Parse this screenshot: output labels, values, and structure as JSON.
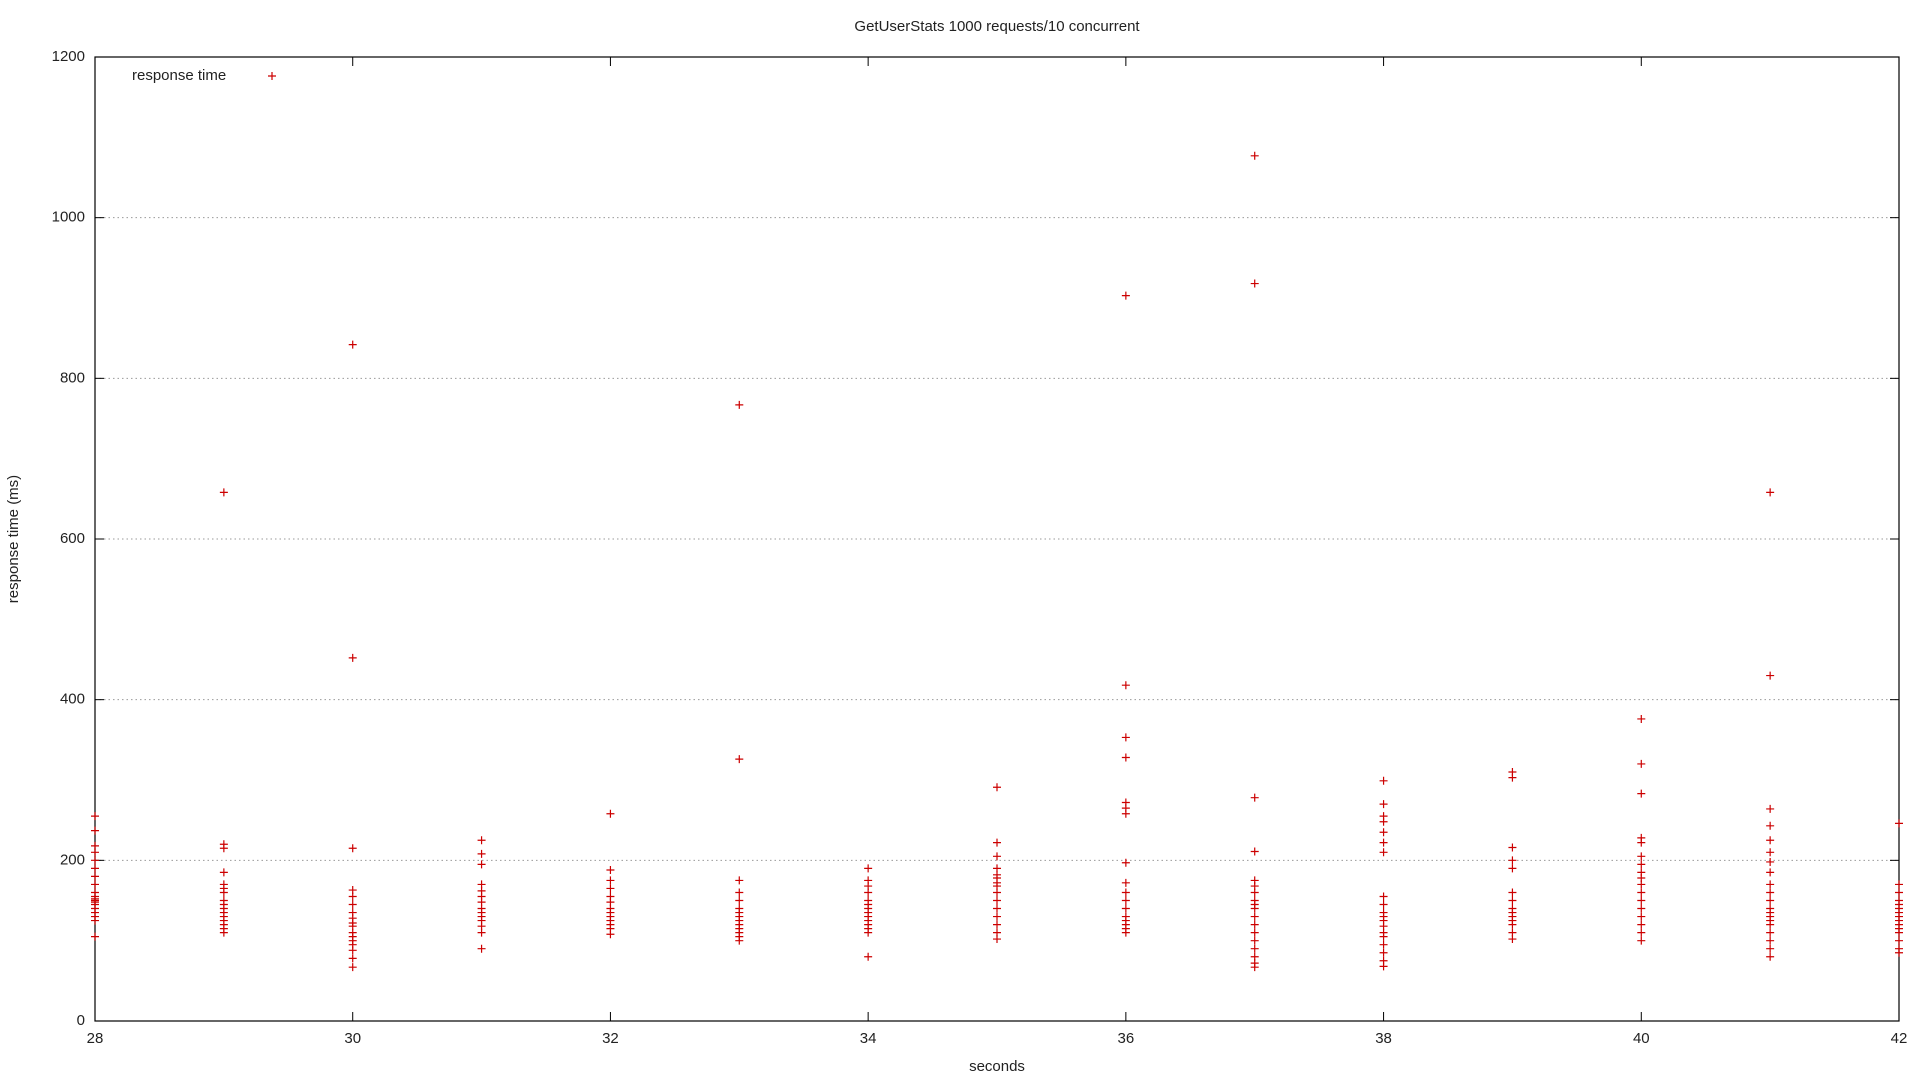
{
  "chart_data": {
    "type": "scatter",
    "title": "GetUserStats 1000 requests/10 concurrent",
    "x_label": "seconds",
    "y_label": "response time (ms)",
    "xlim": [
      28,
      42
    ],
    "xticks": [
      28,
      30,
      32,
      34,
      36,
      38,
      40,
      42
    ],
    "ylim": [
      0,
      1200
    ],
    "yticks": [
      0,
      200,
      400,
      600,
      800,
      1000,
      1200
    ],
    "grid": "y",
    "legend": "top-left",
    "marker": "+",
    "x": [
      28,
      28,
      28,
      28,
      28,
      28,
      28,
      28,
      28,
      28,
      28,
      28,
      28,
      28,
      28,
      28,
      28,
      28,
      28,
      29,
      29,
      29,
      29,
      29,
      29,
      29,
      29,
      29,
      29,
      29,
      29,
      29,
      29,
      29,
      29,
      30,
      30,
      30,
      30,
      30,
      30,
      30,
      30,
      30,
      30,
      30,
      30,
      30,
      30,
      30,
      30,
      30,
      31,
      31,
      31,
      31,
      31,
      31,
      31,
      31,
      31,
      31,
      31,
      31,
      31,
      31,
      32,
      32,
      32,
      32,
      32,
      32,
      32,
      32,
      32,
      32,
      32,
      32,
      32,
      33,
      33,
      33,
      33,
      33,
      33,
      33,
      33,
      33,
      33,
      33,
      33,
      33,
      33,
      34,
      34,
      34,
      34,
      34,
      34,
      34,
      34,
      34,
      34,
      34,
      34,
      34,
      34,
      35,
      35,
      35,
      35,
      35,
      35,
      35,
      35,
      35,
      35,
      35,
      35,
      35,
      35,
      35,
      36,
      36,
      36,
      36,
      36,
      36,
      36,
      36,
      36,
      36,
      36,
      36,
      36,
      36,
      36,
      36,
      36,
      37,
      37,
      37,
      37,
      37,
      37,
      37,
      37,
      37,
      37,
      37,
      37,
      37,
      37,
      37,
      37,
      37,
      37,
      38,
      38,
      38,
      38,
      38,
      38,
      38,
      38,
      38,
      38,
      38,
      38,
      38,
      38,
      38,
      38,
      38,
      38,
      38,
      39,
      39,
      39,
      39,
      39,
      39,
      39,
      39,
      39,
      39,
      39,
      39,
      39,
      39,
      40,
      40,
      40,
      40,
      40,
      40,
      40,
      40,
      40,
      40,
      40,
      40,
      40,
      40,
      40,
      40,
      40,
      41,
      41,
      41,
      41,
      41,
      41,
      41,
      41,
      41,
      41,
      41,
      41,
      41,
      41,
      41,
      41,
      41,
      41,
      41,
      41,
      42,
      42,
      42,
      42,
      42,
      42,
      42,
      42,
      42,
      42,
      42,
      42,
      42,
      42,
      42
    ],
    "series": [
      {
        "name": "response time",
        "color": "#cc0000",
        "values": [
          255,
          237,
          218,
          210,
          200,
          190,
          180,
          170,
          160,
          155,
          152,
          150,
          148,
          145,
          140,
          135,
          130,
          125,
          105,
          658,
          220,
          215,
          185,
          170,
          165,
          160,
          150,
          145,
          140,
          135,
          130,
          125,
          120,
          115,
          110,
          842,
          452,
          215,
          163,
          155,
          145,
          135,
          128,
          122,
          118,
          110,
          105,
          100,
          95,
          88,
          78,
          67,
          225,
          208,
          195,
          170,
          162,
          155,
          148,
          140,
          135,
          130,
          125,
          118,
          110,
          90,
          258,
          188,
          175,
          165,
          155,
          148,
          140,
          135,
          130,
          125,
          120,
          115,
          108,
          767,
          326,
          175,
          160,
          150,
          140,
          135,
          130,
          125,
          120,
          115,
          110,
          105,
          100,
          190,
          175,
          168,
          160,
          150,
          145,
          140,
          135,
          130,
          125,
          120,
          115,
          110,
          80,
          291,
          222,
          205,
          190,
          182,
          178,
          172,
          168,
          160,
          150,
          140,
          130,
          120,
          110,
          102,
          903,
          418,
          353,
          328,
          272,
          265,
          258,
          197,
          172,
          160,
          150,
          140,
          130,
          125,
          120,
          115,
          110,
          1077,
          918,
          278,
          211,
          175,
          168,
          160,
          150,
          145,
          140,
          130,
          120,
          110,
          100,
          90,
          80,
          72,
          67,
          299,
          270,
          255,
          248,
          235,
          222,
          210,
          155,
          145,
          135,
          130,
          125,
          118,
          110,
          105,
          95,
          85,
          75,
          68,
          310,
          303,
          216,
          200,
          190,
          160,
          150,
          140,
          135,
          130,
          125,
          120,
          110,
          102,
          376,
          320,
          283,
          228,
          222,
          205,
          195,
          185,
          178,
          170,
          160,
          150,
          140,
          130,
          120,
          110,
          100,
          658,
          430,
          264,
          243,
          225,
          210,
          198,
          185,
          170,
          160,
          150,
          140,
          135,
          130,
          125,
          120,
          110,
          100,
          90,
          80,
          246,
          170,
          160,
          150,
          145,
          140,
          135,
          130,
          125,
          120,
          115,
          110,
          100,
          90,
          85
        ]
      }
    ]
  }
}
